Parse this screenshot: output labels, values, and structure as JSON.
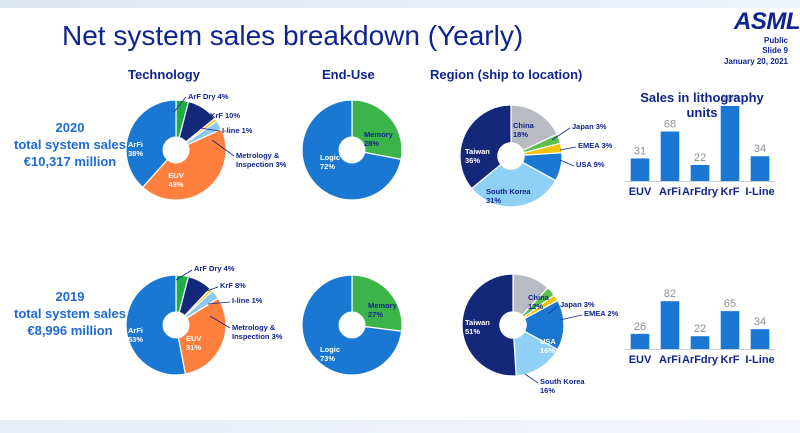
{
  "header": {
    "title": "Net system sales breakdown (Yearly)",
    "logo": "ASML",
    "classification": "Public",
    "slide": "Slide 9",
    "date": "January 20, 2021"
  },
  "columns": {
    "technology": "Technology",
    "enduse": "End-Use",
    "region": "Region (ship to location)"
  },
  "years": [
    {
      "year": "2020",
      "line1": "total system sales",
      "line2": "€10,317 million"
    },
    {
      "year": "2019",
      "line1": "total system sales",
      "line2": "€8,996 million"
    }
  ],
  "colors": {
    "ArFi": "#1a78d3",
    "EUV": "#ff7f3f",
    "ArF Dry": "#1fae45",
    "KrF": "#14287a",
    "I-line": "#f2c500",
    "Metrology": "#8cc9f2",
    "Logic": "#1a78d3",
    "Memory": "#3bb54a",
    "Taiwan": "#14287a",
    "China": "#b8bcc2",
    "Japan": "#5cbf4a",
    "EMEA": "#f2c500",
    "USA": "#1a78d3",
    "South Korea": "#8fd0f5",
    "bar": "#1a78d3"
  },
  "chart_data": [
    {
      "type": "pie",
      "name": "technology-2020",
      "labels": [
        "ArFi",
        "EUV",
        "ArF Dry",
        "KrF",
        "I-line",
        "Metrology & Inspection"
      ],
      "values": [
        38,
        43,
        4,
        10,
        1,
        3
      ],
      "label_text": [
        "ArFi\n38%",
        "EUV\n43%",
        "ArF Dry 4%",
        "KrF 10%",
        "I-line 1%",
        "Metrology &\nInspection 3%"
      ]
    },
    {
      "type": "pie",
      "name": "enduse-2020",
      "labels": [
        "Memory",
        "Logic"
      ],
      "values": [
        28,
        72
      ],
      "label_text": [
        "Memory\n28%",
        "Logic\n72%"
      ]
    },
    {
      "type": "pie",
      "name": "region-2020",
      "labels": [
        "China",
        "Japan",
        "EMEA",
        "USA",
        "South Korea",
        "Taiwan"
      ],
      "values": [
        18,
        3,
        3,
        9,
        31,
        36
      ],
      "label_text": [
        "China\n18%",
        "Japan 3%",
        "EMEA 3%",
        "USA 9%",
        "South Korea\n31%",
        "Taiwan\n36%"
      ]
    },
    {
      "type": "bar",
      "name": "litho-units-2020",
      "title": "Sales in lithography units",
      "categories": [
        "EUV",
        "ArFi",
        "ArFdry",
        "KrF",
        "I-Line"
      ],
      "values": [
        31,
        68,
        22,
        103,
        34
      ]
    },
    {
      "type": "pie",
      "name": "technology-2019",
      "labels": [
        "ArFi",
        "EUV",
        "ArF Dry",
        "KrF",
        "I-line",
        "Metrology & Inspection"
      ],
      "values": [
        53,
        31,
        4,
        8,
        1,
        3
      ],
      "label_text": [
        "ArFi\n53%",
        "EUV\n31%",
        "ArF Dry 4%",
        "KrF 8%",
        "I-line 1%",
        "Metrology &\nInspection 3%"
      ]
    },
    {
      "type": "pie",
      "name": "enduse-2019",
      "labels": [
        "Memory",
        "Logic"
      ],
      "values": [
        27,
        73
      ],
      "label_text": [
        "Memory\n27%",
        "Logic\n73%"
      ]
    },
    {
      "type": "pie",
      "name": "region-2019",
      "labels": [
        "China",
        "Japan",
        "EMEA",
        "USA",
        "South Korea",
        "Taiwan"
      ],
      "values": [
        12,
        3,
        2,
        16,
        16,
        51
      ],
      "label_text": [
        "China\n12%",
        "Japan 3%",
        "EMEA 2%",
        "USA\n16%",
        "South Korea\n16%",
        "Taiwan\n51%"
      ]
    },
    {
      "type": "bar",
      "name": "litho-units-2019",
      "title": "",
      "categories": [
        "EUV",
        "ArFi",
        "ArFdry",
        "KrF",
        "I-Line"
      ],
      "values": [
        26,
        82,
        22,
        65,
        34
      ]
    }
  ]
}
